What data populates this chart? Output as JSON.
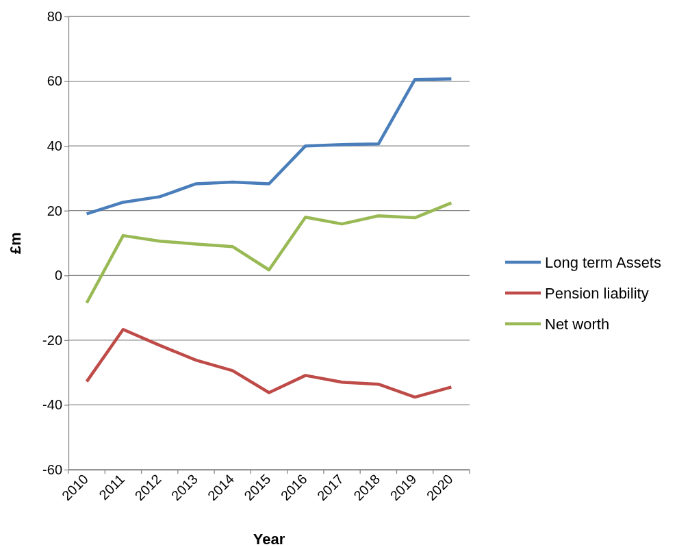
{
  "chart_data": {
    "type": "line",
    "xlabel": "Year",
    "ylabel": "£m",
    "categories": [
      "2010",
      "2011",
      "2012",
      "2013",
      "2014",
      "2015",
      "2016",
      "2017",
      "2018",
      "2019",
      "2020"
    ],
    "series": [
      {
        "name": "Long term Assets",
        "color": "#4a7ebb",
        "values": [
          19,
          22.6,
          24.3,
          28.3,
          28.8,
          28.3,
          40,
          40.4,
          40.6,
          60.5,
          60.7
        ]
      },
      {
        "name": "Pension liability",
        "color": "#be4b48",
        "values": [
          -32.8,
          -16.7,
          -21.6,
          -26.2,
          -29.4,
          -36.2,
          -30.9,
          -33,
          -33.6,
          -37.6,
          -34.5
        ]
      },
      {
        "name": "Net worth",
        "color": "#98b954",
        "values": [
          -8.5,
          12.3,
          10.6,
          9.7,
          8.9,
          1.7,
          18,
          15.9,
          18.4,
          17.8,
          22.4
        ]
      }
    ],
    "ylim": [
      -60,
      80
    ],
    "yticks": [
      -60,
      -40,
      -20,
      0,
      20,
      40,
      60,
      80
    ],
    "grid": "y",
    "legend": "right",
    "marker": "none",
    "line_style": "solid"
  }
}
